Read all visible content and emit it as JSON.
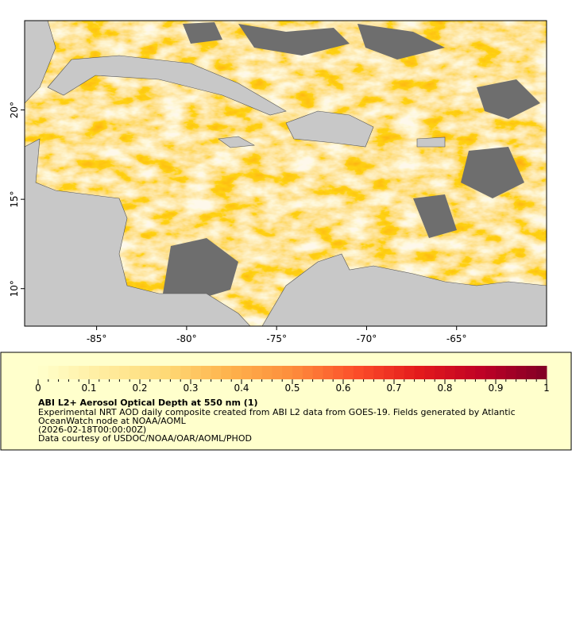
{
  "chart_data": {
    "type": "map",
    "title": "ABI L2+ Aerosol Optical Depth at 550 nm (1)",
    "description": [
      "Experimental NRT AOD daily composite created from ABI L2 data from GOES-19. Fields generated by Atlantic",
      "OceanWatch node at NOAA/AOML",
      "(2026-02-18T00:00:00Z)",
      "Data courtesy of USDOC/NOAA/OAR/AOML/PHOD"
    ],
    "xlim": [
      -89,
      -60
    ],
    "ylim": [
      7.9,
      25
    ],
    "xticks": [
      {
        "value": -85,
        "label": "-85°"
      },
      {
        "value": -80,
        "label": "-80°"
      },
      {
        "value": -75,
        "label": "-75°"
      },
      {
        "value": -70,
        "label": "-70°"
      },
      {
        "value": -65,
        "label": "-65°"
      }
    ],
    "yticks": [
      {
        "value": 10,
        "label": "10°"
      },
      {
        "value": 15,
        "label": "15°"
      },
      {
        "value": 20,
        "label": "20°"
      }
    ],
    "colorbar": {
      "range": [
        0,
        1
      ],
      "ticks": [
        0,
        0.1,
        0.2,
        0.3,
        0.4,
        0.5,
        0.6,
        0.7,
        0.8,
        0.9,
        1
      ],
      "colors": [
        "#ffffcc",
        "#ffeda0",
        "#fed976",
        "#feb24c",
        "#fd8d3c",
        "#fc4e2a",
        "#e31a1c",
        "#bd0026",
        "#800026"
      ]
    }
  }
}
